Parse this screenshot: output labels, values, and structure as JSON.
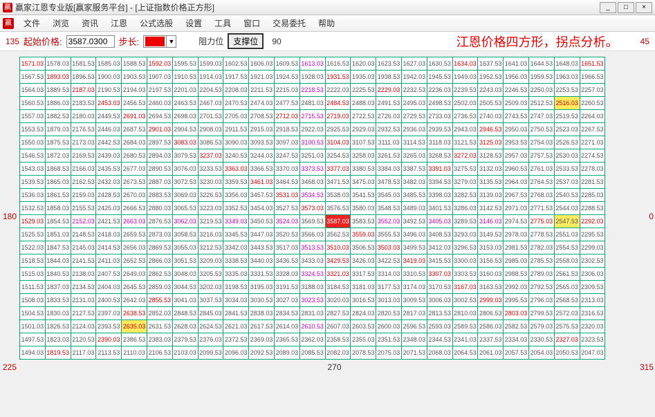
{
  "window": {
    "title": "赢家江恩专业版[赢家服务平台] - [上证指数价格正方形]",
    "icon_text": "赢",
    "min": "_",
    "max": "□",
    "close": "×"
  },
  "menu": [
    "文件",
    "浏览",
    "资讯",
    "江恩",
    "公式选股",
    "设置",
    "工具",
    "窗口",
    "交易委托",
    "帮助"
  ],
  "toolbar": {
    "start_label": "起始价格:",
    "start_value": "3587.0300",
    "step_label": "步长:",
    "resist_label": "阻力位",
    "support_label": "支撑位",
    "headline": "江恩价格四方形，拐点分析。"
  },
  "corners": {
    "tl": "135",
    "tr": "45",
    "bl": "225",
    "br": "315",
    "ml": "180",
    "mr": "0",
    "mt": "90",
    "mb": "270"
  },
  "grid": {
    "rows": 23,
    "cols": 23,
    "cells": [
      [
        "1571.03",
        "1578.03",
        "1581.53",
        "1585.03",
        "1588.53",
        "1592.03",
        "1595.53",
        "1599.03",
        "1602.53",
        "1606.03",
        "1609.53",
        "1613.03",
        "1616.53",
        "1620.03",
        "1623.53",
        "1627.03",
        "1630.53",
        "1634.03",
        "1637.53",
        "1641.03",
        "1644.53",
        "1648.03",
        "1651.53"
      ],
      [
        "1567.53",
        "1893.03",
        "1896.53",
        "1900.03",
        "1903.53",
        "1907.03",
        "1910.53",
        "1914.03",
        "1917.53",
        "1921.03",
        "1924.53",
        "1928.03",
        "1931.53",
        "1935.03",
        "1938.53",
        "1942.03",
        "1945.53",
        "1949.03",
        "1952.53",
        "1956.03",
        "1959.53",
        "1963.03",
        "1966.53"
      ],
      [
        "1564.03",
        "1889.53",
        "2187.03",
        "2190.53",
        "2194.03",
        "2197.53",
        "2201.03",
        "2204.53",
        "2208.03",
        "2211.53",
        "2215.03",
        "2218.53",
        "2222.03",
        "2225.53",
        "2229.03",
        "2232.53",
        "2236.03",
        "2239.53",
        "2243.03",
        "2246.53",
        "2250.03",
        "2253.53",
        "2257.03"
      ],
      [
        "1560.53",
        "1886.03",
        "2183.53",
        "2453.03",
        "2456.53",
        "2460.03",
        "2463.53",
        "2467.03",
        "2470.53",
        "2474.03",
        "2477.53",
        "2481.03",
        "2484.53",
        "2488.03",
        "2491.53",
        "2495.03",
        "2498.53",
        "2502.03",
        "2505.53",
        "2509.03",
        "2512.53",
        "2516.03",
        "2260.53"
      ],
      [
        "1557.03",
        "1882.53",
        "2180.03",
        "2449.53",
        "2691.03",
        "2694.53",
        "2698.03",
        "2701.53",
        "2705.03",
        "2708.53",
        "2712.03",
        "2715.53",
        "2719.03",
        "2722.53",
        "2726.03",
        "2729.53",
        "2733.03",
        "2736.53",
        "2740.03",
        "2743.53",
        "2747.03",
        "2519.53",
        "2264.03"
      ],
      [
        "1553.53",
        "1879.03",
        "2176.53",
        "2446.03",
        "2687.53",
        "2901.03",
        "2904.53",
        "2908.03",
        "2911.53",
        "2915.03",
        "2918.53",
        "2922.03",
        "2925.53",
        "2929.03",
        "2932.53",
        "2936.03",
        "2939.53",
        "2943.03",
        "2946.53",
        "2950.03",
        "2750.53",
        "2523.03",
        "2267.53"
      ],
      [
        "1550.03",
        "1875.53",
        "2173.03",
        "2442.53",
        "2684.03",
        "2897.53",
        "3083.03",
        "3086.53",
        "3090.03",
        "3093.53",
        "3097.03",
        "3100.53",
        "3104.03",
        "3107.53",
        "3111.03",
        "3114.53",
        "3118.03",
        "3121.53",
        "3125.03",
        "2953.53",
        "2754.03",
        "2526.53",
        "2271.03"
      ],
      [
        "1546.53",
        "1872.03",
        "2169.53",
        "2439.03",
        "2680.53",
        "2894.03",
        "3079.53",
        "3237.03",
        "3240.53",
        "3244.03",
        "3247.53",
        "3251.03",
        "3254.53",
        "3258.03",
        "3261.53",
        "3265.03",
        "3268.53",
        "3272.03",
        "3128.53",
        "2957.03",
        "2757.53",
        "2530.03",
        "2274.53"
      ],
      [
        "1543.03",
        "1868.53",
        "2166.03",
        "2435.53",
        "2677.03",
        "2890.53",
        "3076.03",
        "3233.53",
        "3363.03",
        "3366.53",
        "3370.03",
        "3373.53",
        "3377.03",
        "3380.53",
        "3384.03",
        "3387.53",
        "3391.03",
        "3275.53",
        "3132.03",
        "2960.53",
        "2761.03",
        "2533.53",
        "2278.03"
      ],
      [
        "1539.53",
        "1865.03",
        "2162.53",
        "2432.03",
        "2673.53",
        "2887.03",
        "3072.53",
        "3230.03",
        "3359.53",
        "3461.03",
        "3464.53",
        "3468.03",
        "3471.53",
        "3475.03",
        "3478.53",
        "3482.03",
        "3394.53",
        "3279.03",
        "3135.53",
        "2964.03",
        "2764.53",
        "2537.03",
        "2281.53"
      ],
      [
        "1536.03",
        "1861.53",
        "2159.03",
        "2428.53",
        "2670.03",
        "2883.53",
        "3069.03",
        "3226.53",
        "3356.03",
        "3457.53",
        "3531.03",
        "3534.53",
        "3538.03",
        "3541.53",
        "3545.03",
        "3485.53",
        "3398.03",
        "3282.53",
        "3139.03",
        "2967.53",
        "2768.03",
        "2540.53",
        "2285.03"
      ],
      [
        "1532.53",
        "1858.03",
        "2155.53",
        "2425.03",
        "2666.53",
        "2880.03",
        "3065.53",
        "3223.03",
        "3352.53",
        "3454.03",
        "3527.53",
        "3573.03",
        "3576.53",
        "3580.03",
        "3548.53",
        "3489.03",
        "3401.53",
        "3286.03",
        "3142.53",
        "2971.03",
        "2771.53",
        "2544.03",
        "2288.53"
      ],
      [
        "1529.03",
        "1854.53",
        "2152.03",
        "2421.53",
        "2663.03",
        "2876.53",
        "3062.03",
        "3219.53",
        "3349.03",
        "3450.53",
        "3524.03",
        "3569.53",
        "3587.03",
        "3583.53",
        "3552.03",
        "3492.53",
        "3405.03",
        "3289.53",
        "3146.03",
        "2974.53",
        "2775.03",
        "2547.53",
        "2292.03"
      ],
      [
        "1525.53",
        "1851.03",
        "2148.53",
        "2418.03",
        "2659.53",
        "2873.03",
        "3058.53",
        "3216.03",
        "3345.53",
        "3447.03",
        "3520.53",
        "3566.03",
        "3562.53",
        "3559.03",
        "3555.53",
        "3496.03",
        "3408.53",
        "3293.03",
        "3149.53",
        "2978.03",
        "2778.53",
        "2551.03",
        "2295.53"
      ],
      [
        "1522.03",
        "1847.53",
        "2145.03",
        "2414.53",
        "2656.03",
        "2869.53",
        "3055.03",
        "3212.53",
        "3342.03",
        "3443.53",
        "3517.03",
        "3513.53",
        "3510.03",
        "3506.53",
        "3503.03",
        "3499.53",
        "3412.03",
        "3296.53",
        "3153.03",
        "2981.53",
        "2782.03",
        "2554.53",
        "2299.03"
      ],
      [
        "1518.53",
        "1844.03",
        "2141.53",
        "2411.03",
        "2652.53",
        "2866.03",
        "3051.53",
        "3209.03",
        "3338.53",
        "3440.03",
        "3436.53",
        "3433.03",
        "3429.53",
        "3426.03",
        "3422.53",
        "3419.03",
        "3415.53",
        "3300.03",
        "3156.53",
        "2985.03",
        "2785.53",
        "2558.03",
        "2302.53"
      ],
      [
        "1515.03",
        "1840.53",
        "2138.03",
        "2407.53",
        "2649.03",
        "2862.53",
        "3048.03",
        "3205.53",
        "3335.03",
        "3331.53",
        "3328.03",
        "3324.53",
        "3321.03",
        "3317.53",
        "3314.03",
        "3310.53",
        "3307.03",
        "3303.53",
        "3160.03",
        "2988.53",
        "2789.03",
        "2561.53",
        "2306.03"
      ],
      [
        "1511.53",
        "1837.03",
        "2134.53",
        "2404.03",
        "2645.53",
        "2859.03",
        "3044.53",
        "3202.03",
        "3198.53",
        "3195.03",
        "3191.53",
        "3188.03",
        "3184.53",
        "3181.03",
        "3177.53",
        "3174.03",
        "3170.53",
        "3167.03",
        "3163.53",
        "2992.03",
        "2792.53",
        "2565.03",
        "2309.53"
      ],
      [
        "1508.03",
        "1833.53",
        "2131.03",
        "2400.53",
        "2642.03",
        "2855.53",
        "3041.03",
        "3037.53",
        "3034.03",
        "3030.53",
        "3027.03",
        "3023.53",
        "3020.03",
        "3016.53",
        "3013.03",
        "3009.53",
        "3006.03",
        "3002.53",
        "2999.03",
        "2995.53",
        "2796.03",
        "2568.53",
        "2313.03"
      ],
      [
        "1504.53",
        "1830.03",
        "2127.53",
        "2397.03",
        "2638.53",
        "2852.03",
        "2848.53",
        "2845.03",
        "2841.53",
        "2838.03",
        "2834.53",
        "2831.03",
        "2827.53",
        "2824.03",
        "2820.53",
        "2817.03",
        "2813.53",
        "2810.03",
        "2806.53",
        "2803.03",
        "2799.53",
        "2572.03",
        "2316.53"
      ],
      [
        "1501.03",
        "1826.53",
        "2124.03",
        "2393.53",
        "2635.03",
        "2631.53",
        "2628.03",
        "2624.53",
        "2621.03",
        "2617.53",
        "2614.03",
        "2610.53",
        "2607.03",
        "2603.53",
        "2600.03",
        "2596.53",
        "2593.03",
        "2589.53",
        "2586.03",
        "2582.53",
        "2579.03",
        "2575.53",
        "2320.03"
      ],
      [
        "1497.53",
        "1823.03",
        "2120.53",
        "2390.03",
        "2386.53",
        "2383.03",
        "2379.53",
        "2376.03",
        "2372.53",
        "2369.03",
        "2365.53",
        "2362.03",
        "2358.53",
        "2355.03",
        "2351.53",
        "2348.03",
        "2344.53",
        "2341.03",
        "2337.53",
        "2334.03",
        "2330.53",
        "2327.03",
        "2323.53"
      ],
      [
        "1494.03",
        "1819.53",
        "2117.03",
        "2113.53",
        "2110.03",
        "2106.53",
        "2103.03",
        "2099.53",
        "2096.03",
        "2092.53",
        "2089.03",
        "2085.53",
        "2082.03",
        "2078.53",
        "2075.03",
        "2071.53",
        "2068.03",
        "2064.53",
        "2061.03",
        "2057.53",
        "2054.03",
        "2050.53",
        "2047.03"
      ]
    ],
    "red_cells": [
      [
        0,
        0
      ],
      [
        0,
        5
      ],
      [
        0,
        17
      ],
      [
        1,
        1
      ],
      [
        1,
        12
      ],
      [
        2,
        2
      ],
      [
        2,
        14
      ],
      [
        3,
        3
      ],
      [
        3,
        12
      ],
      [
        3,
        21
      ],
      [
        4,
        4
      ],
      [
        4,
        10
      ],
      [
        4,
        12
      ],
      [
        4,
        12
      ],
      [
        5,
        5
      ],
      [
        5,
        18
      ],
      [
        6,
        6
      ],
      [
        6,
        12
      ],
      [
        6,
        18
      ],
      [
        7,
        7
      ],
      [
        7,
        17
      ],
      [
        8,
        8
      ],
      [
        8,
        12
      ],
      [
        8,
        16
      ],
      [
        9,
        9
      ],
      [
        10,
        10
      ],
      [
        11,
        11
      ],
      [
        12,
        0
      ],
      [
        12,
        12
      ],
      [
        12,
        20
      ],
      [
        12,
        22
      ],
      [
        13,
        13
      ],
      [
        14,
        14
      ],
      [
        14,
        12
      ],
      [
        15,
        15
      ],
      [
        15,
        12
      ],
      [
        16,
        16
      ],
      [
        16,
        12
      ],
      [
        17,
        17
      ],
      [
        18,
        5
      ],
      [
        18,
        18
      ],
      [
        19,
        4
      ],
      [
        19,
        19
      ],
      [
        20,
        4
      ],
      [
        21,
        3
      ],
      [
        21,
        21
      ],
      [
        22,
        1
      ],
      [
        0,
        22
      ]
    ],
    "mag_cells": [
      [
        0,
        11
      ],
      [
        2,
        11
      ],
      [
        4,
        11
      ],
      [
        6,
        11
      ],
      [
        8,
        11
      ],
      [
        10,
        11
      ],
      [
        12,
        2
      ],
      [
        12,
        4
      ],
      [
        12,
        6
      ],
      [
        12,
        8
      ],
      [
        12,
        10
      ],
      [
        12,
        14
      ],
      [
        12,
        16
      ],
      [
        12,
        18
      ],
      [
        14,
        11
      ],
      [
        16,
        11
      ],
      [
        18,
        11
      ],
      [
        20,
        11
      ]
    ],
    "yellow_bg": [
      [
        3,
        21
      ],
      [
        12,
        21
      ],
      [
        20,
        4
      ]
    ],
    "red_bg": [
      [
        12,
        12
      ]
    ]
  }
}
